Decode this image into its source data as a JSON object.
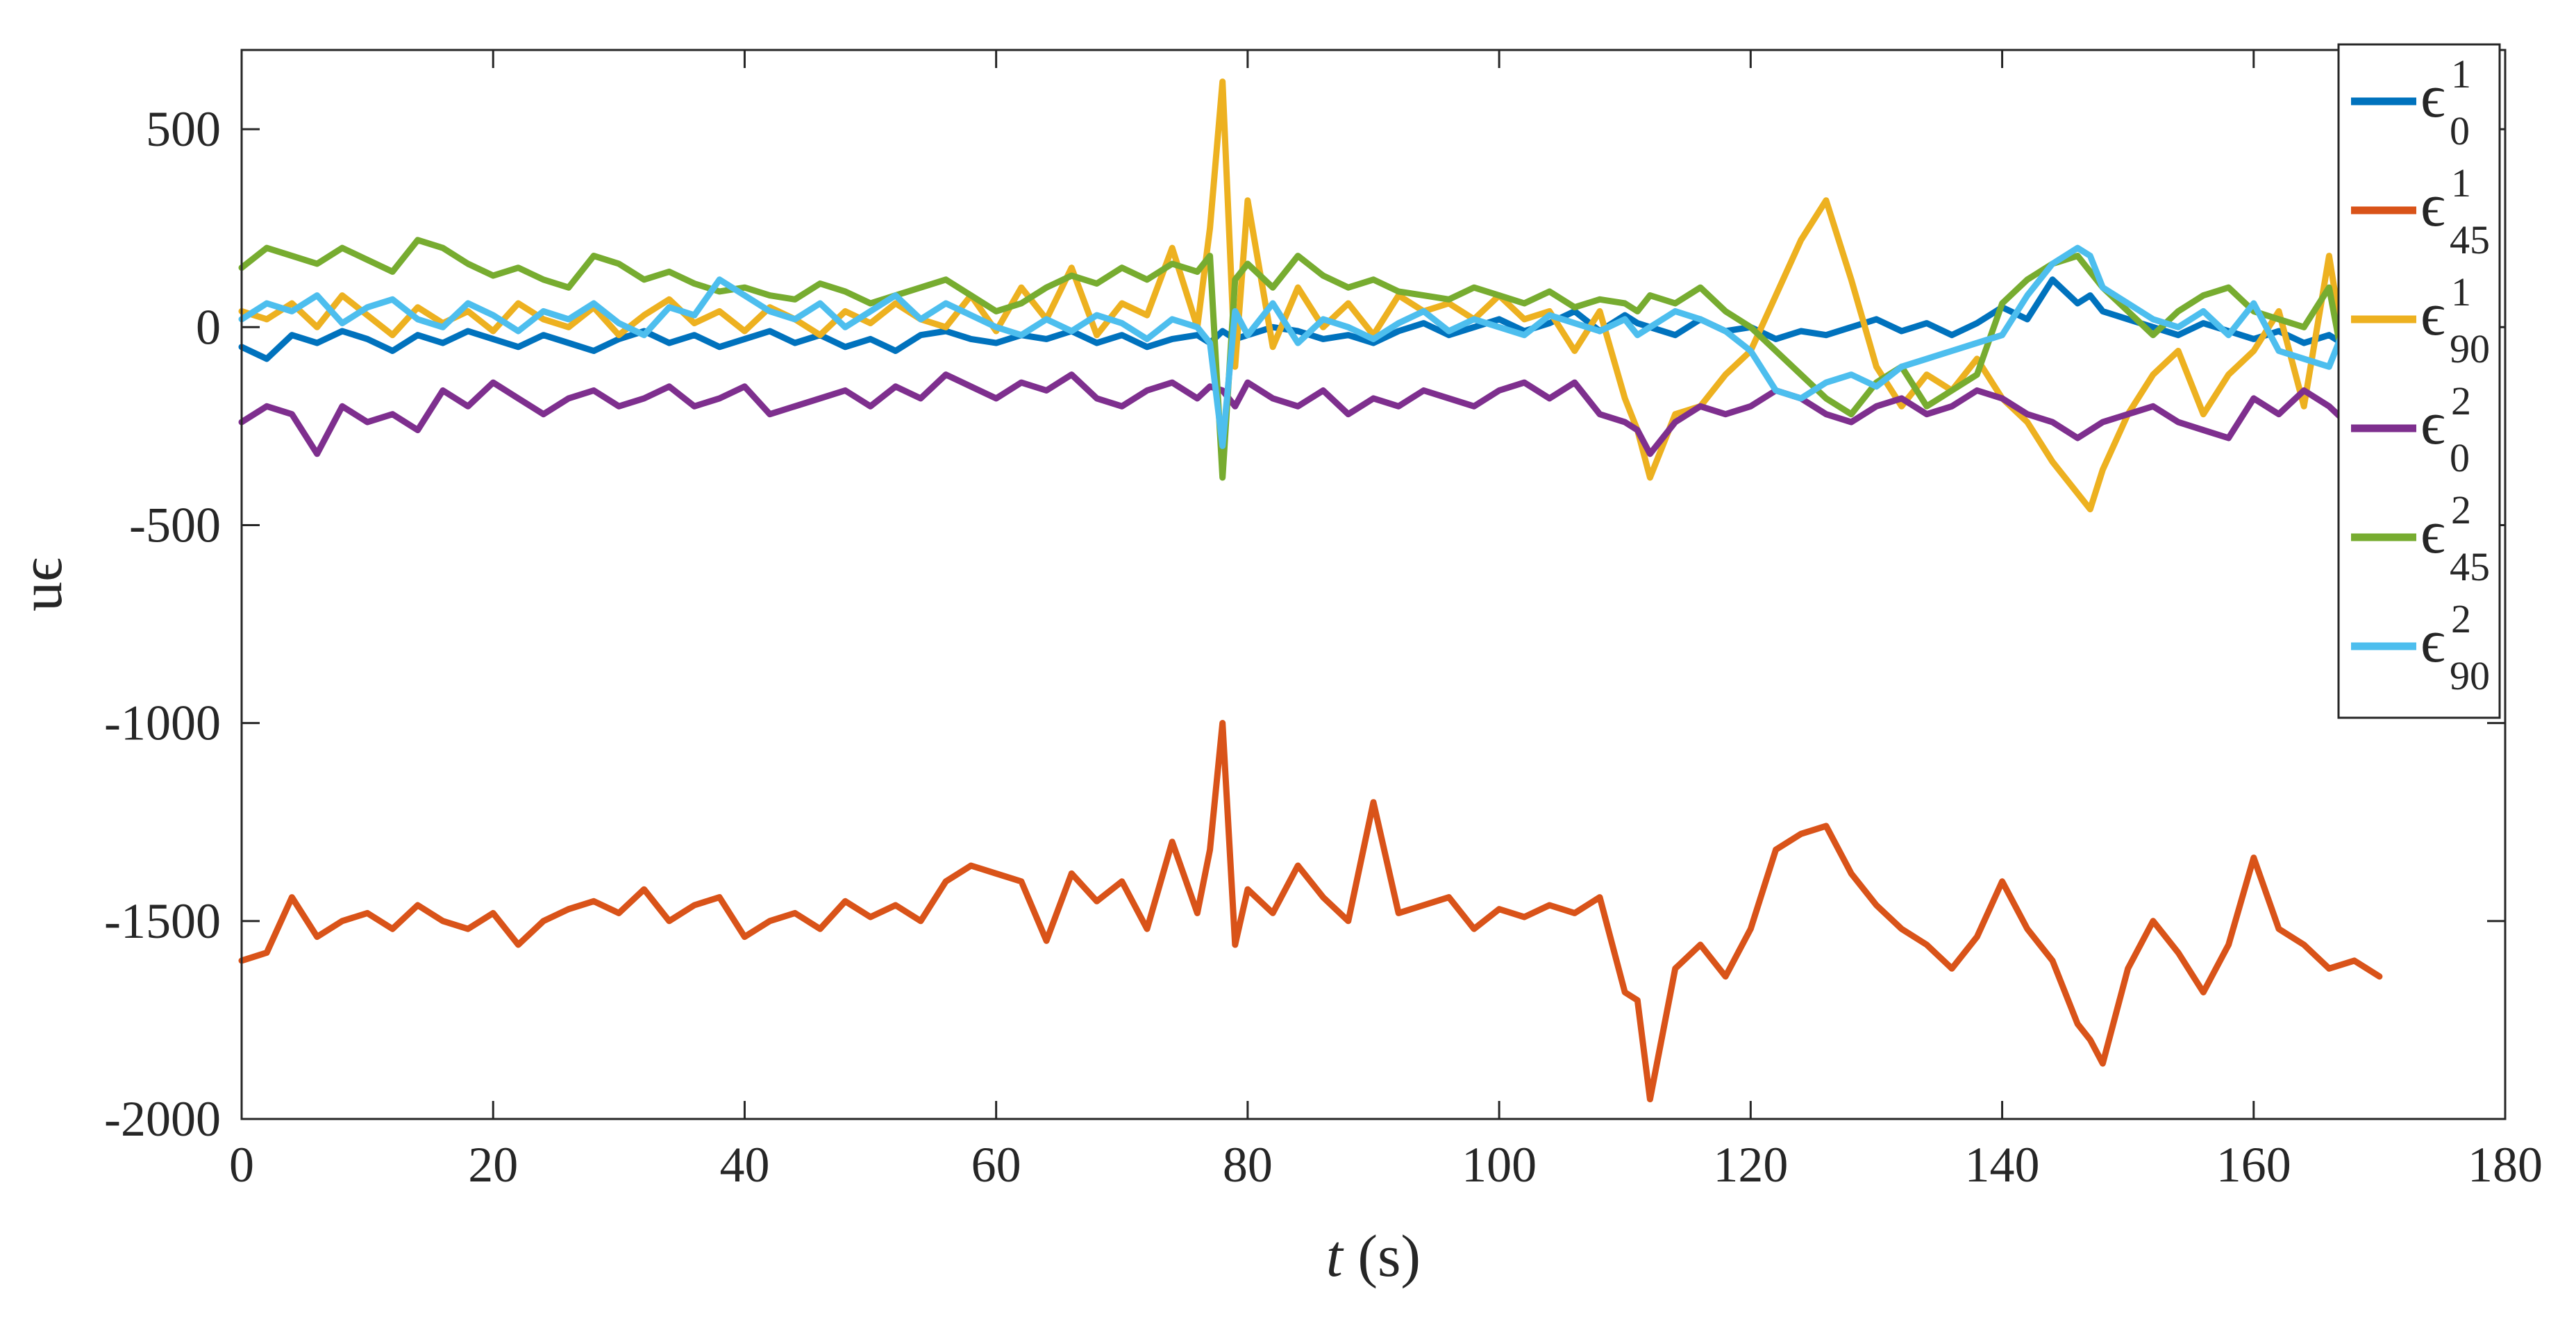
{
  "chart_data": {
    "type": "line",
    "xlabel": {
      "var": "t",
      "unit": "(s)"
    },
    "ylabel": "uϵ",
    "xlim": [
      0,
      180
    ],
    "ylim": [
      -2000,
      700
    ],
    "xticks": [
      "0",
      "20",
      "40",
      "60",
      "80",
      "100",
      "120",
      "140",
      "160",
      "180"
    ],
    "yticks": [
      "500",
      "0",
      "-500",
      "-1000",
      "-1500",
      "-2000"
    ],
    "grid": false,
    "legend_position": "top-right",
    "x": [
      0,
      2,
      4,
      6,
      8,
      10,
      12,
      14,
      16,
      18,
      20,
      22,
      24,
      26,
      28,
      30,
      32,
      34,
      36,
      38,
      40,
      42,
      44,
      46,
      48,
      50,
      52,
      54,
      56,
      58,
      60,
      62,
      64,
      66,
      68,
      70,
      72,
      74,
      76,
      77,
      78,
      79,
      80,
      82,
      84,
      86,
      88,
      90,
      92,
      94,
      96,
      98,
      100,
      102,
      104,
      106,
      108,
      110,
      111,
      112,
      114,
      116,
      118,
      120,
      122,
      124,
      126,
      128,
      130,
      132,
      134,
      136,
      138,
      140,
      142,
      144,
      146,
      147,
      148,
      150,
      152,
      154,
      156,
      158,
      160,
      162,
      164,
      166,
      168,
      170
    ],
    "series": [
      {
        "name": "ϵ 1 0",
        "sym": "ϵ",
        "sup": "1",
        "sub": "0",
        "color": "#0072bd",
        "values": [
          -50,
          -80,
          -20,
          -40,
          -10,
          -30,
          -60,
          -20,
          -40,
          -10,
          -30,
          -50,
          -20,
          -40,
          -60,
          -30,
          -10,
          -40,
          -20,
          -50,
          -30,
          -10,
          -40,
          -20,
          -50,
          -30,
          -60,
          -20,
          -10,
          -30,
          -40,
          -20,
          -30,
          -10,
          -40,
          -20,
          -50,
          -30,
          -20,
          -40,
          -10,
          -30,
          -20,
          0,
          -10,
          -30,
          -20,
          -40,
          -10,
          10,
          -20,
          0,
          20,
          -10,
          10,
          40,
          -10,
          30,
          10,
          0,
          -20,
          20,
          -10,
          0,
          -30,
          -10,
          -20,
          0,
          20,
          -10,
          10,
          -20,
          10,
          50,
          20,
          120,
          60,
          80,
          40,
          20,
          0,
          -20,
          10,
          -10,
          -30,
          -10,
          -40,
          -20,
          -60,
          80
        ]
      },
      {
        "name": "ϵ 1 45",
        "sym": "ϵ",
        "sup": "1",
        "sub": "45",
        "color": "#d95319",
        "values": [
          -1600,
          -1580,
          -1440,
          -1540,
          -1500,
          -1480,
          -1520,
          -1460,
          -1500,
          -1520,
          -1480,
          -1560,
          -1500,
          -1470,
          -1450,
          -1480,
          -1420,
          -1500,
          -1460,
          -1440,
          -1540,
          -1500,
          -1480,
          -1520,
          -1450,
          -1490,
          -1460,
          -1500,
          -1400,
          -1360,
          -1380,
          -1400,
          -1550,
          -1380,
          -1450,
          -1400,
          -1520,
          -1300,
          -1480,
          -1320,
          -1000,
          -1560,
          -1420,
          -1480,
          -1360,
          -1440,
          -1500,
          -1200,
          -1480,
          -1460,
          -1440,
          -1520,
          -1470,
          -1490,
          -1460,
          -1480,
          -1440,
          -1680,
          -1700,
          -1950,
          -1620,
          -1560,
          -1640,
          -1520,
          -1320,
          -1280,
          -1260,
          -1380,
          -1460,
          -1520,
          -1560,
          -1620,
          -1540,
          -1400,
          -1520,
          -1600,
          -1760,
          -1800,
          -1860,
          -1620,
          -1500,
          -1580,
          -1680,
          -1560,
          -1340,
          -1520,
          -1560,
          -1620,
          -1600,
          -1640
        ]
      },
      {
        "name": "ϵ 1 90",
        "sym": "ϵ",
        "sup": "1",
        "sub": "90",
        "color": "#edb120",
        "values": [
          40,
          20,
          60,
          0,
          80,
          30,
          -20,
          50,
          10,
          40,
          -10,
          60,
          20,
          0,
          50,
          -20,
          30,
          70,
          10,
          40,
          -10,
          50,
          20,
          -20,
          40,
          10,
          60,
          20,
          0,
          80,
          -10,
          100,
          20,
          150,
          -20,
          60,
          30,
          200,
          0,
          250,
          620,
          -100,
          320,
          -50,
          100,
          0,
          60,
          -20,
          80,
          40,
          60,
          20,
          80,
          20,
          40,
          -60,
          40,
          -180,
          -260,
          -380,
          -220,
          -200,
          -120,
          -60,
          80,
          220,
          320,
          120,
          -100,
          -200,
          -120,
          -160,
          -80,
          -180,
          -240,
          -340,
          -420,
          -460,
          -360,
          -220,
          -120,
          -60,
          -220,
          -120,
          -60,
          40,
          -200,
          180,
          -220,
          -360
        ]
      },
      {
        "name": "ϵ 2 0",
        "sym": "ϵ",
        "sup": "2",
        "sub": "0",
        "color": "#7e2f8e",
        "values": [
          -240,
          -200,
          -220,
          -320,
          -200,
          -240,
          -220,
          -260,
          -160,
          -200,
          -140,
          -180,
          -220,
          -180,
          -160,
          -200,
          -180,
          -150,
          -200,
          -180,
          -150,
          -220,
          -200,
          -180,
          -160,
          -200,
          -150,
          -180,
          -120,
          -150,
          -180,
          -140,
          -160,
          -120,
          -180,
          -200,
          -160,
          -140,
          -180,
          -150,
          -160,
          -200,
          -140,
          -180,
          -200,
          -160,
          -220,
          -180,
          -200,
          -160,
          -180,
          -200,
          -160,
          -140,
          -180,
          -140,
          -220,
          -240,
          -260,
          -320,
          -240,
          -200,
          -220,
          -200,
          -160,
          -180,
          -220,
          -240,
          -200,
          -180,
          -220,
          -200,
          -160,
          -180,
          -220,
          -240,
          -280,
          -260,
          -240,
          -220,
          -200,
          -240,
          -260,
          -280,
          -180,
          -220,
          -160,
          -200,
          -260,
          -240
        ]
      },
      {
        "name": "ϵ 2 45",
        "sym": "ϵ",
        "sup": "2",
        "sub": "45",
        "color": "#77ac30",
        "values": [
          150,
          200,
          180,
          160,
          200,
          170,
          140,
          220,
          200,
          160,
          130,
          150,
          120,
          100,
          180,
          160,
          120,
          140,
          110,
          90,
          100,
          80,
          70,
          110,
          90,
          60,
          80,
          100,
          120,
          80,
          40,
          60,
          100,
          130,
          110,
          150,
          120,
          160,
          140,
          180,
          -380,
          120,
          160,
          100,
          180,
          130,
          100,
          120,
          90,
          80,
          70,
          100,
          80,
          60,
          90,
          50,
          70,
          60,
          40,
          80,
          60,
          100,
          40,
          0,
          -60,
          -120,
          -180,
          -220,
          -140,
          -100,
          -200,
          -160,
          -120,
          60,
          120,
          160,
          180,
          140,
          100,
          40,
          -20,
          40,
          80,
          100,
          40,
          20,
          0,
          100,
          -240,
          300
        ]
      },
      {
        "name": "ϵ 2 90",
        "sym": "ϵ",
        "sup": "2",
        "sub": "90",
        "color": "#4dbeee",
        "values": [
          20,
          60,
          40,
          80,
          10,
          50,
          70,
          20,
          0,
          60,
          30,
          -10,
          40,
          20,
          60,
          10,
          -20,
          50,
          30,
          120,
          80,
          40,
          20,
          60,
          0,
          40,
          80,
          20,
          60,
          30,
          0,
          -20,
          20,
          -10,
          30,
          10,
          -30,
          20,
          0,
          -40,
          -300,
          40,
          -20,
          60,
          -40,
          20,
          0,
          -30,
          10,
          40,
          -10,
          20,
          0,
          -20,
          30,
          10,
          -10,
          20,
          -20,
          0,
          40,
          20,
          -10,
          -60,
          -160,
          -180,
          -140,
          -120,
          -150,
          -100,
          -80,
          -60,
          -40,
          -20,
          80,
          160,
          200,
          180,
          100,
          60,
          20,
          0,
          40,
          -20,
          60,
          -60,
          -80,
          -100,
          60,
          80
        ]
      }
    ]
  }
}
